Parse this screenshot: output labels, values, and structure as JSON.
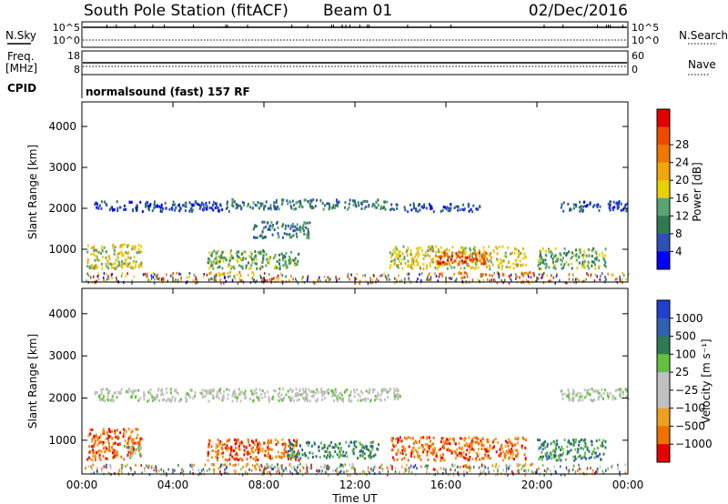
{
  "header": {
    "title": "South Pole Station (fitACF)",
    "beam": "Beam 01",
    "date": "02/Dec/2016"
  },
  "noise_panel": {
    "left_label": "N.Sky",
    "right_label": "N.Search",
    "ticks_left": [
      "10^5",
      "10^0"
    ],
    "ticks_right": [
      "10^5",
      "10^0"
    ]
  },
  "freq_panel": {
    "left_label_line1": "Freq.",
    "left_label_line2": "[MHz]",
    "right_label": "Nave",
    "ticks_left": [
      "18",
      "8"
    ],
    "ticks_right": [
      "60",
      "0"
    ]
  },
  "cpid": {
    "label": "CPID",
    "value": "normalsound (fast) 157 RF"
  },
  "colors": {
    "power_scale": [
      "#0000ff",
      "#2e4fb8",
      "#2f7a52",
      "#5aa470",
      "#e6d200",
      "#f2a80a",
      "#f07800",
      "#f04a00",
      "#e00000"
    ],
    "velocity_scale": [
      "#2040d0",
      "#3060b0",
      "#2f7a52",
      "#66c040",
      "#c0c0c0",
      "#c0c0c0",
      "#f0a020",
      "#f07000",
      "#e80000"
    ]
  },
  "chart_data": [
    {
      "type": "heatmap",
      "name": "power",
      "ylabel": "Slant Range [km]",
      "ylim": [
        200,
        4600
      ],
      "y_ticks": [
        "1000",
        "2000",
        "3000",
        "4000"
      ],
      "y_tick_values": [
        1000,
        2000,
        3000,
        4000
      ],
      "xlim_hours": [
        0,
        24
      ],
      "colorbar_label": "Power [dB]",
      "colorbar_ticks": [
        "4",
        "8",
        "12",
        "16",
        "20",
        "24",
        "28"
      ],
      "bands": [
        {
          "t0": 0.5,
          "t1": 6.5,
          "r0": 1950,
          "r1": 2200,
          "level": 1
        },
        {
          "t0": 6.5,
          "t1": 13.5,
          "r0": 2000,
          "r1": 2250,
          "level": 2
        },
        {
          "t0": 13.5,
          "t1": 17.5,
          "r0": 1950,
          "r1": 2150,
          "level": 1
        },
        {
          "t0": 21.0,
          "t1": 24.0,
          "r0": 1950,
          "r1": 2200,
          "level": 1
        },
        {
          "t0": 0.2,
          "t1": 2.6,
          "r0": 550,
          "r1": 1150,
          "level": 4
        },
        {
          "t0": 5.5,
          "t1": 9.5,
          "r0": 550,
          "r1": 1000,
          "level": 3
        },
        {
          "t0": 13.5,
          "t1": 19.5,
          "r0": 550,
          "r1": 1100,
          "level": 4
        },
        {
          "t0": 15.5,
          "t1": 17.8,
          "r0": 650,
          "r1": 950,
          "level": 7
        },
        {
          "t0": 20.0,
          "t1": 23.0,
          "r0": 550,
          "r1": 1050,
          "level": 3
        },
        {
          "t0": 5.5,
          "t1": 7.5,
          "r0": 380,
          "r1": 470,
          "level": 5
        },
        {
          "t0": 16.5,
          "t1": 19.8,
          "r0": 380,
          "r1": 470,
          "level": 6
        },
        {
          "t0": 7.5,
          "t1": 10.0,
          "r0": 1300,
          "r1": 1700,
          "level": 2
        }
      ]
    },
    {
      "type": "heatmap",
      "name": "velocity",
      "ylabel": "Slant Range [km]",
      "ylim": [
        200,
        4600
      ],
      "y_ticks": [
        "1000",
        "2000",
        "3000",
        "4000"
      ],
      "y_tick_values": [
        1000,
        2000,
        3000,
        4000
      ],
      "xlabel": "Time UT",
      "x_ticks": [
        "00:00",
        "04:00",
        "08:00",
        "12:00",
        "16:00",
        "20:00",
        "00:00"
      ],
      "x_tick_hours": [
        0,
        4,
        8,
        12,
        16,
        20,
        24
      ],
      "xlim_hours": [
        0,
        24
      ],
      "colorbar_label": "Velocity [m s⁻¹]",
      "colorbar_ticks": [
        "1000",
        "500",
        "100",
        "25",
        "−25",
        "−100",
        "−500",
        "−1000"
      ],
      "bands": [
        {
          "t0": 0.5,
          "t1": 14.0,
          "r0": 1950,
          "r1": 2250,
          "level": 4
        },
        {
          "t0": 21.0,
          "t1": 24.0,
          "r0": 1950,
          "r1": 2250,
          "level": 4
        },
        {
          "t0": 0.2,
          "t1": 2.6,
          "r0": 550,
          "r1": 1300,
          "level": 7
        },
        {
          "t0": 1.8,
          "t1": 2.6,
          "r0": 600,
          "r1": 900,
          "level": 3
        },
        {
          "t0": 5.5,
          "t1": 9.5,
          "r0": 550,
          "r1": 1050,
          "level": 7
        },
        {
          "t0": 13.5,
          "t1": 19.5,
          "r0": 550,
          "r1": 1100,
          "level": 7
        },
        {
          "t0": 9.0,
          "t1": 13.0,
          "r0": 600,
          "r1": 1000,
          "level": 2
        },
        {
          "t0": 20.0,
          "t1": 23.0,
          "r0": 550,
          "r1": 1050,
          "level": 2
        },
        {
          "t0": 5.5,
          "t1": 8.0,
          "r0": 380,
          "r1": 470,
          "level": 6
        },
        {
          "t0": 8.0,
          "t1": 12.0,
          "r0": 380,
          "r1": 470,
          "level": 3
        },
        {
          "t0": 16.5,
          "t1": 19.8,
          "r0": 380,
          "r1": 470,
          "level": 6
        }
      ]
    }
  ]
}
